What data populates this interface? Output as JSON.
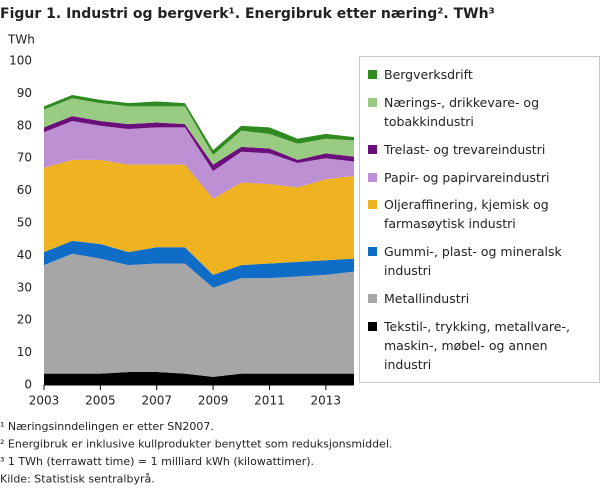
{
  "chart_data": {
    "type": "stacked_area",
    "title": "Figur 1.  Industri og bergverk¹. Energibruk etter næring². TWh³",
    "y_label": "TWh",
    "x": [
      2003,
      2004,
      2005,
      2006,
      2007,
      2008,
      2009,
      2010,
      2011,
      2012,
      2013,
      2014
    ],
    "xlim": [
      2003,
      2014
    ],
    "xticks": [
      2003,
      2005,
      2007,
      2009,
      2011,
      2013
    ],
    "ylim": [
      0,
      100
    ],
    "yticks": [
      0,
      10,
      20,
      30,
      40,
      50,
      60,
      70,
      80,
      90,
      100
    ],
    "grid": false,
    "legend": "right",
    "series": [
      {
        "name": "Tekstil-, trykking, metallvare-, maskin-, møbel- og annen industri",
        "color": "#000000",
        "values": [
          3.5,
          3.5,
          3.5,
          4,
          4,
          3.5,
          2.5,
          3.5,
          3.5,
          3.5,
          3.5,
          3.5
        ]
      },
      {
        "name": "Metallindustri",
        "color": "#a6a6a6",
        "values": [
          33.5,
          37,
          35.5,
          33,
          33.5,
          34,
          27.5,
          29.5,
          29.5,
          30,
          30.5,
          31.5
        ]
      },
      {
        "name": "Gummi-, plast- og mineralsk industri",
        "color": "#0f6cc7",
        "values": [
          4,
          4,
          4.5,
          4,
          5,
          5,
          4,
          4,
          4.5,
          4.5,
          4.5,
          4
        ]
      },
      {
        "name": "Oljeraffinering, kjemisk og farmasøytisk industri",
        "color": "#efb321",
        "values": [
          26,
          25,
          26,
          27,
          25.5,
          25.5,
          23.5,
          25.5,
          24.5,
          23,
          25,
          25.5
        ]
      },
      {
        "name": "Papir- og papirvareindustri",
        "color": "#bd8fd3",
        "values": [
          11,
          12,
          10.5,
          11,
          11.5,
          11.5,
          8.5,
          9.5,
          9.5,
          7.5,
          6.5,
          4.5
        ]
      },
      {
        "name": "Trelast- og trevareindustri",
        "color": "#6a0f7a",
        "values": [
          1.5,
          1.5,
          1.5,
          1.5,
          1.5,
          1,
          2,
          1.5,
          1.5,
          1,
          1.5,
          1.5
        ]
      },
      {
        "name": "Nærings-, drikkevare- og tobakkindustri",
        "color": "#9acb82",
        "values": [
          5.5,
          5.5,
          5.5,
          5.5,
          5,
          5.5,
          3,
          5,
          4.5,
          5,
          4.5,
          5
        ]
      },
      {
        "name": "Bergverksdrift",
        "color": "#2f8a1f",
        "values": [
          1,
          1,
          1,
          1,
          1.5,
          1,
          1.5,
          1.5,
          2,
          1.5,
          1.5,
          1
        ]
      }
    ],
    "notes": [
      "¹ Næringsinndelingen er etter SN2007.",
      "² Energibruk er inklusive kullprodukter  benyttet som reduksjonsmiddel.",
      "³ 1 TWh (terrawatt time) = 1 milliard kWh (kilowattimer).",
      "Kilde: Statistisk sentralbyrå."
    ]
  }
}
